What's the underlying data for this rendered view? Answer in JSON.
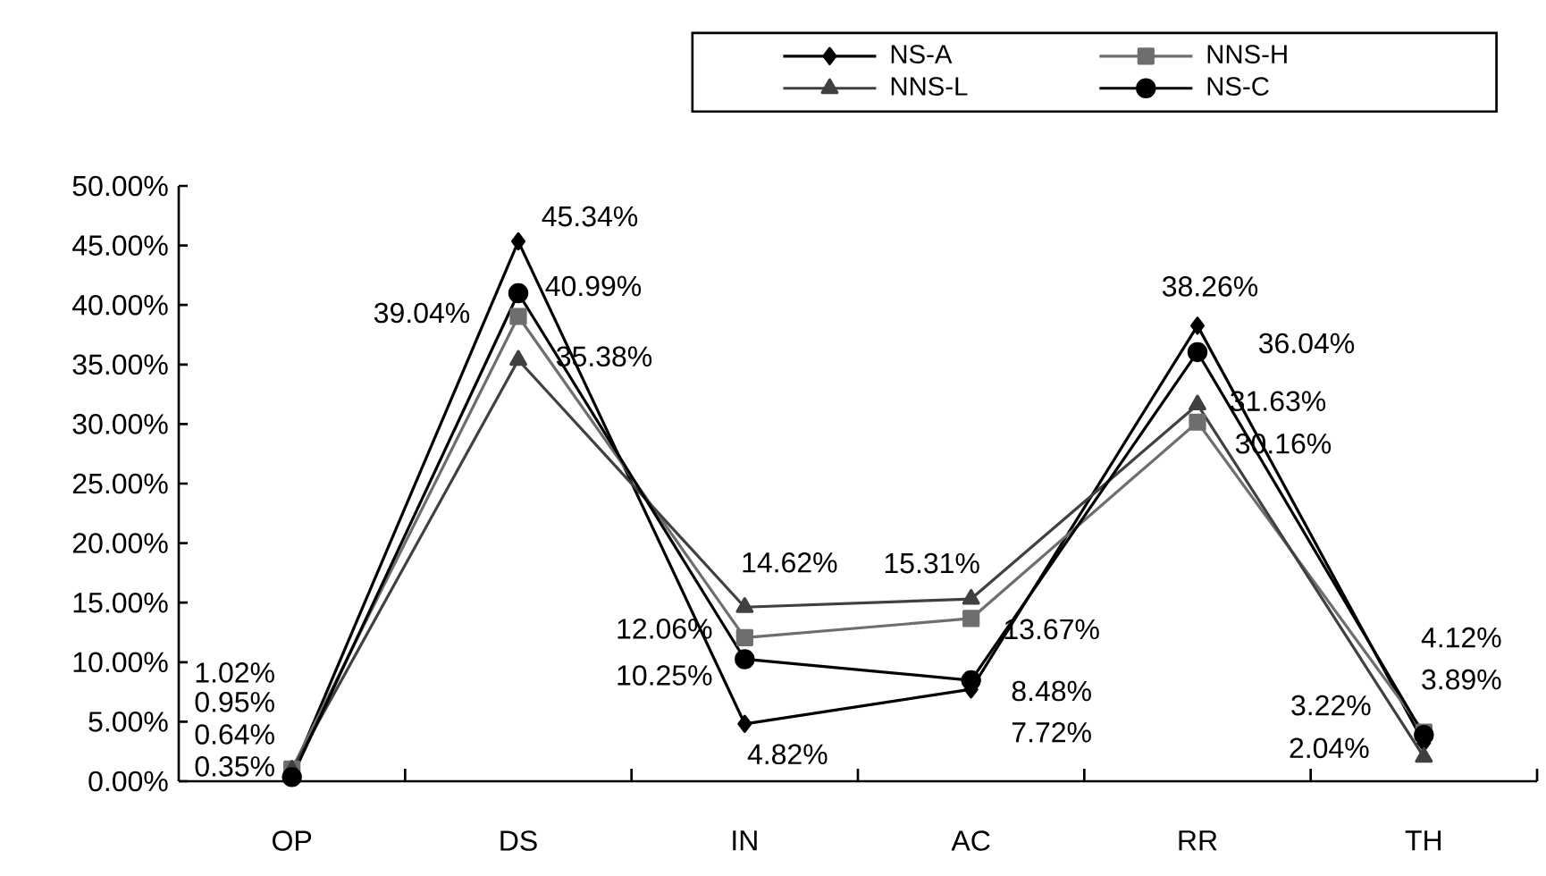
{
  "chart_data": {
    "type": "line",
    "categories": [
      "OP",
      "DS",
      "IN",
      "AC",
      "RR",
      "TH"
    ],
    "series": [
      {
        "name": "NS-A",
        "color": "#000000",
        "marker": "diamond",
        "values": [
          0.64,
          45.34,
          4.82,
          7.72,
          38.26,
          3.22
        ],
        "value_labels": [
          "0.64%",
          "45.34%",
          "4.82%",
          "7.72%",
          "38.26%",
          "3.22%"
        ]
      },
      {
        "name": "NNS-H",
        "color": "#6e6e6e",
        "marker": "square",
        "values": [
          1.02,
          39.04,
          12.06,
          13.67,
          30.16,
          4.12
        ],
        "value_labels": [
          "1.02%",
          "39.04%",
          "12.06%",
          "13.67%",
          "30.16%",
          "4.12%"
        ]
      },
      {
        "name": "NNS-L",
        "color": "#404040",
        "marker": "triangle",
        "values": [
          0.95,
          35.38,
          14.62,
          15.31,
          31.63,
          2.04
        ],
        "value_labels": [
          "0.95%",
          "35.38%",
          "14.62%",
          "15.31%",
          "31.63%",
          "2.04%"
        ]
      },
      {
        "name": "NS-C",
        "color": "#000000",
        "marker": "circle",
        "values": [
          0.35,
          40.99,
          10.25,
          8.48,
          36.04,
          3.89
        ],
        "value_labels": [
          "0.35%",
          "40.99%",
          "10.25%",
          "8.48%",
          "36.04%",
          "3.89%"
        ]
      }
    ],
    "ylim": [
      0,
      50
    ],
    "yticks": [
      {
        "value": 0,
        "label": "0.00%"
      },
      {
        "value": 5,
        "label": "5.00%"
      },
      {
        "value": 10,
        "label": "10.00%"
      },
      {
        "value": 15,
        "label": "15.00%"
      },
      {
        "value": 20,
        "label": "20.00%"
      },
      {
        "value": 25,
        "label": "25.00%"
      },
      {
        "value": 30,
        "label": "30.00%"
      },
      {
        "value": 35,
        "label": "35.00%"
      },
      {
        "value": 40,
        "label": "40.00%"
      },
      {
        "value": 45,
        "label": "45.00%"
      },
      {
        "value": 50,
        "label": "50.00%"
      }
    ],
    "grid": false,
    "legend": "top right",
    "line_style": "solid"
  }
}
